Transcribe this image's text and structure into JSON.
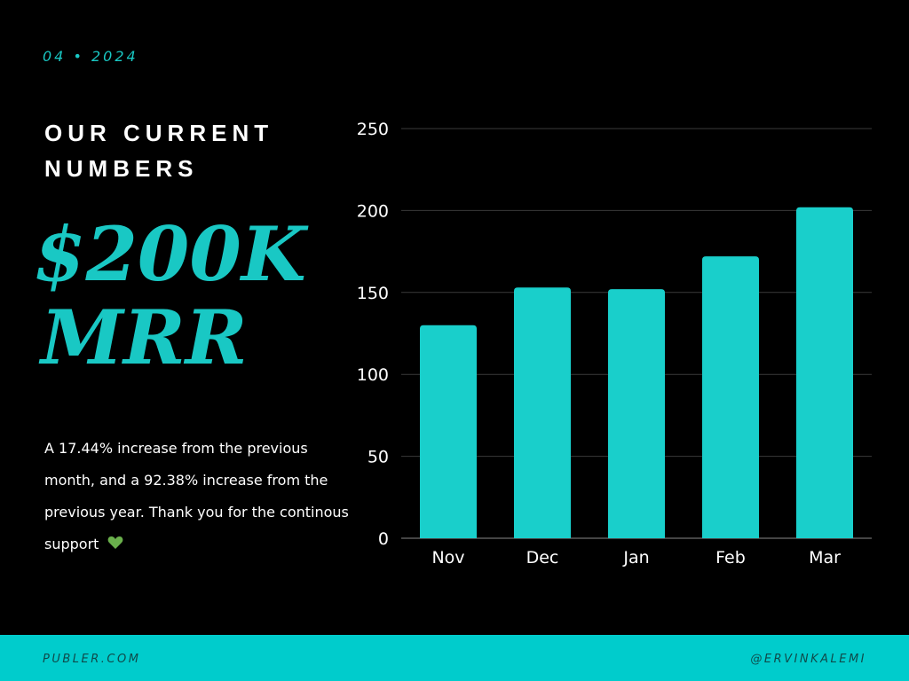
{
  "header": {
    "date": "04 • 2024",
    "title": "OUR CURRENT NUMBERS"
  },
  "highlight": {
    "value": "$200K",
    "label": "MRR"
  },
  "description": {
    "text": "A 17.44% increase from the previous month, and a 92.38% increase from the previous year. Thank you for the continous support",
    "icon": "green-heart-icon"
  },
  "footer": {
    "left": "PUBLER.COM",
    "right": "@ERVINKALEMI"
  },
  "colors": {
    "background": "#000000",
    "accent": "#19c8c4",
    "footer": "#00cccc",
    "bar": "#19cfcb",
    "heart": "#6ab04c"
  },
  "chart_data": {
    "type": "bar",
    "categories": [
      "Nov",
      "Dec",
      "Jan",
      "Feb",
      "Mar"
    ],
    "values": [
      130,
      153,
      152,
      172,
      202
    ],
    "yticks": [
      0,
      50,
      100,
      150,
      200,
      250
    ],
    "ylim": [
      0,
      250
    ],
    "title": "",
    "xlabel": "",
    "ylabel": "",
    "grid": true
  }
}
